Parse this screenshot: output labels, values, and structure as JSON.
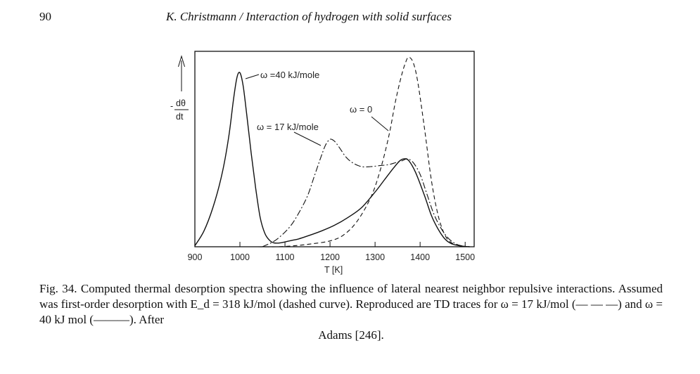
{
  "header": {
    "page_number": "90",
    "running_head": "K. Christmann / Interaction of hydrogen with solid surfaces"
  },
  "chart_data": {
    "type": "line",
    "title": "",
    "xlabel": "T [K]",
    "ylabel": "-dθ/dt",
    "ylabel_top": "dθ",
    "ylabel_bottom": "dt",
    "xlim": [
      900,
      1520
    ],
    "ylim": [
      0,
      1.0
    ],
    "x_ticks": [
      900,
      1000,
      1100,
      1200,
      1300,
      1400,
      1500
    ],
    "x_tick_labels": [
      "900",
      "1000",
      "1100",
      "1200",
      "1300",
      "1400",
      "1500"
    ],
    "series": [
      {
        "name": "ω = 40 kJ/mole",
        "style": "solid",
        "x": [
          900,
          920,
          940,
          960,
          975,
          985,
          992,
          997,
          1002,
          1008,
          1015,
          1025,
          1035,
          1045,
          1055,
          1065,
          1075,
          1090,
          1110,
          1130,
          1150,
          1180,
          1210,
          1240,
          1270,
          1300,
          1320,
          1340,
          1355,
          1365,
          1375,
          1390,
          1410,
          1425,
          1440,
          1455,
          1470,
          1490,
          1510
        ],
        "y": [
          0.005,
          0.08,
          0.2,
          0.37,
          0.56,
          0.74,
          0.85,
          0.89,
          0.88,
          0.81,
          0.68,
          0.48,
          0.3,
          0.15,
          0.07,
          0.035,
          0.02,
          0.02,
          0.03,
          0.04,
          0.055,
          0.08,
          0.11,
          0.15,
          0.2,
          0.28,
          0.34,
          0.4,
          0.44,
          0.45,
          0.44,
          0.38,
          0.26,
          0.16,
          0.09,
          0.04,
          0.015,
          0.004,
          0.0
        ]
      },
      {
        "name": "ω = 17 kJ/mole",
        "style": "dash-dot",
        "x": [
          1050,
          1080,
          1110,
          1130,
          1150,
          1165,
          1180,
          1190,
          1200,
          1210,
          1220,
          1235,
          1250,
          1270,
          1290,
          1310,
          1330,
          1345,
          1360,
          1372,
          1385,
          1400,
          1415,
          1430,
          1445,
          1460,
          1475,
          1490,
          1510
        ],
        "y": [
          0.0,
          0.035,
          0.1,
          0.17,
          0.26,
          0.36,
          0.46,
          0.52,
          0.55,
          0.54,
          0.51,
          0.46,
          0.43,
          0.41,
          0.41,
          0.415,
          0.42,
          0.43,
          0.44,
          0.45,
          0.43,
          0.37,
          0.27,
          0.17,
          0.1,
          0.05,
          0.02,
          0.006,
          0.0
        ]
      },
      {
        "name": "ω = 0",
        "style": "dashed",
        "x": [
          1040,
          1080,
          1120,
          1160,
          1200,
          1230,
          1260,
          1290,
          1310,
          1330,
          1345,
          1358,
          1368,
          1375,
          1385,
          1395,
          1410,
          1425,
          1440,
          1455,
          1470,
          1490,
          1510
        ],
        "y": [
          0.0,
          0.0,
          0.005,
          0.015,
          0.03,
          0.06,
          0.13,
          0.25,
          0.38,
          0.56,
          0.74,
          0.87,
          0.945,
          0.97,
          0.94,
          0.84,
          0.6,
          0.34,
          0.16,
          0.06,
          0.02,
          0.005,
          0.0
        ]
      }
    ],
    "annotations": [
      {
        "text": "ω =40 kJ/mole",
        "series": "ω = 40 kJ/mole"
      },
      {
        "text": "ω = 17 kJ/mole",
        "series": "ω = 17 kJ/mole"
      },
      {
        "text": "ω = 0",
        "series": "ω = 0"
      }
    ]
  },
  "caption": {
    "line1": "Fig. 34. Computed thermal desorption spectra showing the influence of lateral nearest neighbor",
    "line2": "repulsive interactions. Assumed was first-order desorption with E_d = 318 kJ/mol (dashed curve).",
    "line3": "Reproduced are TD traces for ω = 17 kJ/mol (— — —) and ω = 40 kJ mol (———). After",
    "line4": "Adams [246]."
  }
}
